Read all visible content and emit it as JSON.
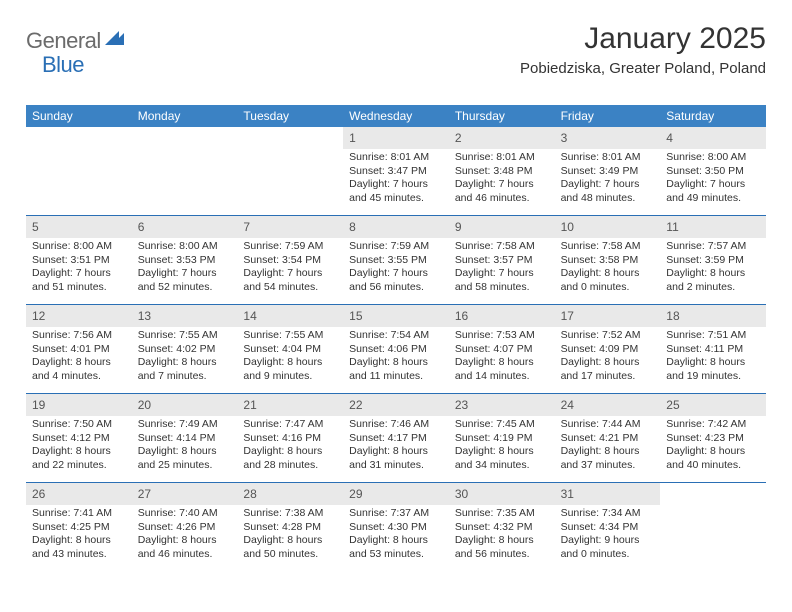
{
  "logo": {
    "general": "General",
    "blue": "Blue"
  },
  "title": "January 2025",
  "location": "Pobiedziska, Greater Poland, Poland",
  "colors": {
    "header_bg": "#3b82c4",
    "daynum_bg": "#e9e9e9",
    "row_border": "#2a6fb5",
    "text": "#333333",
    "logo_gray": "#6b6b6b",
    "logo_blue": "#2a6fb5"
  },
  "day_names": [
    "Sunday",
    "Monday",
    "Tuesday",
    "Wednesday",
    "Thursday",
    "Friday",
    "Saturday"
  ],
  "weeks": [
    [
      null,
      null,
      null,
      {
        "n": "1",
        "sr": "8:01 AM",
        "ss": "3:47 PM",
        "dl": "7 hours and 45 minutes."
      },
      {
        "n": "2",
        "sr": "8:01 AM",
        "ss": "3:48 PM",
        "dl": "7 hours and 46 minutes."
      },
      {
        "n": "3",
        "sr": "8:01 AM",
        "ss": "3:49 PM",
        "dl": "7 hours and 48 minutes."
      },
      {
        "n": "4",
        "sr": "8:00 AM",
        "ss": "3:50 PM",
        "dl": "7 hours and 49 minutes."
      }
    ],
    [
      {
        "n": "5",
        "sr": "8:00 AM",
        "ss": "3:51 PM",
        "dl": "7 hours and 51 minutes."
      },
      {
        "n": "6",
        "sr": "8:00 AM",
        "ss": "3:53 PM",
        "dl": "7 hours and 52 minutes."
      },
      {
        "n": "7",
        "sr": "7:59 AM",
        "ss": "3:54 PM",
        "dl": "7 hours and 54 minutes."
      },
      {
        "n": "8",
        "sr": "7:59 AM",
        "ss": "3:55 PM",
        "dl": "7 hours and 56 minutes."
      },
      {
        "n": "9",
        "sr": "7:58 AM",
        "ss": "3:57 PM",
        "dl": "7 hours and 58 minutes."
      },
      {
        "n": "10",
        "sr": "7:58 AM",
        "ss": "3:58 PM",
        "dl": "8 hours and 0 minutes."
      },
      {
        "n": "11",
        "sr": "7:57 AM",
        "ss": "3:59 PM",
        "dl": "8 hours and 2 minutes."
      }
    ],
    [
      {
        "n": "12",
        "sr": "7:56 AM",
        "ss": "4:01 PM",
        "dl": "8 hours and 4 minutes."
      },
      {
        "n": "13",
        "sr": "7:55 AM",
        "ss": "4:02 PM",
        "dl": "8 hours and 7 minutes."
      },
      {
        "n": "14",
        "sr": "7:55 AM",
        "ss": "4:04 PM",
        "dl": "8 hours and 9 minutes."
      },
      {
        "n": "15",
        "sr": "7:54 AM",
        "ss": "4:06 PM",
        "dl": "8 hours and 11 minutes."
      },
      {
        "n": "16",
        "sr": "7:53 AM",
        "ss": "4:07 PM",
        "dl": "8 hours and 14 minutes."
      },
      {
        "n": "17",
        "sr": "7:52 AM",
        "ss": "4:09 PM",
        "dl": "8 hours and 17 minutes."
      },
      {
        "n": "18",
        "sr": "7:51 AM",
        "ss": "4:11 PM",
        "dl": "8 hours and 19 minutes."
      }
    ],
    [
      {
        "n": "19",
        "sr": "7:50 AM",
        "ss": "4:12 PM",
        "dl": "8 hours and 22 minutes."
      },
      {
        "n": "20",
        "sr": "7:49 AM",
        "ss": "4:14 PM",
        "dl": "8 hours and 25 minutes."
      },
      {
        "n": "21",
        "sr": "7:47 AM",
        "ss": "4:16 PM",
        "dl": "8 hours and 28 minutes."
      },
      {
        "n": "22",
        "sr": "7:46 AM",
        "ss": "4:17 PM",
        "dl": "8 hours and 31 minutes."
      },
      {
        "n": "23",
        "sr": "7:45 AM",
        "ss": "4:19 PM",
        "dl": "8 hours and 34 minutes."
      },
      {
        "n": "24",
        "sr": "7:44 AM",
        "ss": "4:21 PM",
        "dl": "8 hours and 37 minutes."
      },
      {
        "n": "25",
        "sr": "7:42 AM",
        "ss": "4:23 PM",
        "dl": "8 hours and 40 minutes."
      }
    ],
    [
      {
        "n": "26",
        "sr": "7:41 AM",
        "ss": "4:25 PM",
        "dl": "8 hours and 43 minutes."
      },
      {
        "n": "27",
        "sr": "7:40 AM",
        "ss": "4:26 PM",
        "dl": "8 hours and 46 minutes."
      },
      {
        "n": "28",
        "sr": "7:38 AM",
        "ss": "4:28 PM",
        "dl": "8 hours and 50 minutes."
      },
      {
        "n": "29",
        "sr": "7:37 AM",
        "ss": "4:30 PM",
        "dl": "8 hours and 53 minutes."
      },
      {
        "n": "30",
        "sr": "7:35 AM",
        "ss": "4:32 PM",
        "dl": "8 hours and 56 minutes."
      },
      {
        "n": "31",
        "sr": "7:34 AM",
        "ss": "4:34 PM",
        "dl": "9 hours and 0 minutes."
      },
      null
    ]
  ],
  "labels": {
    "sunrise": "Sunrise:",
    "sunset": "Sunset:",
    "daylight": "Daylight:"
  }
}
